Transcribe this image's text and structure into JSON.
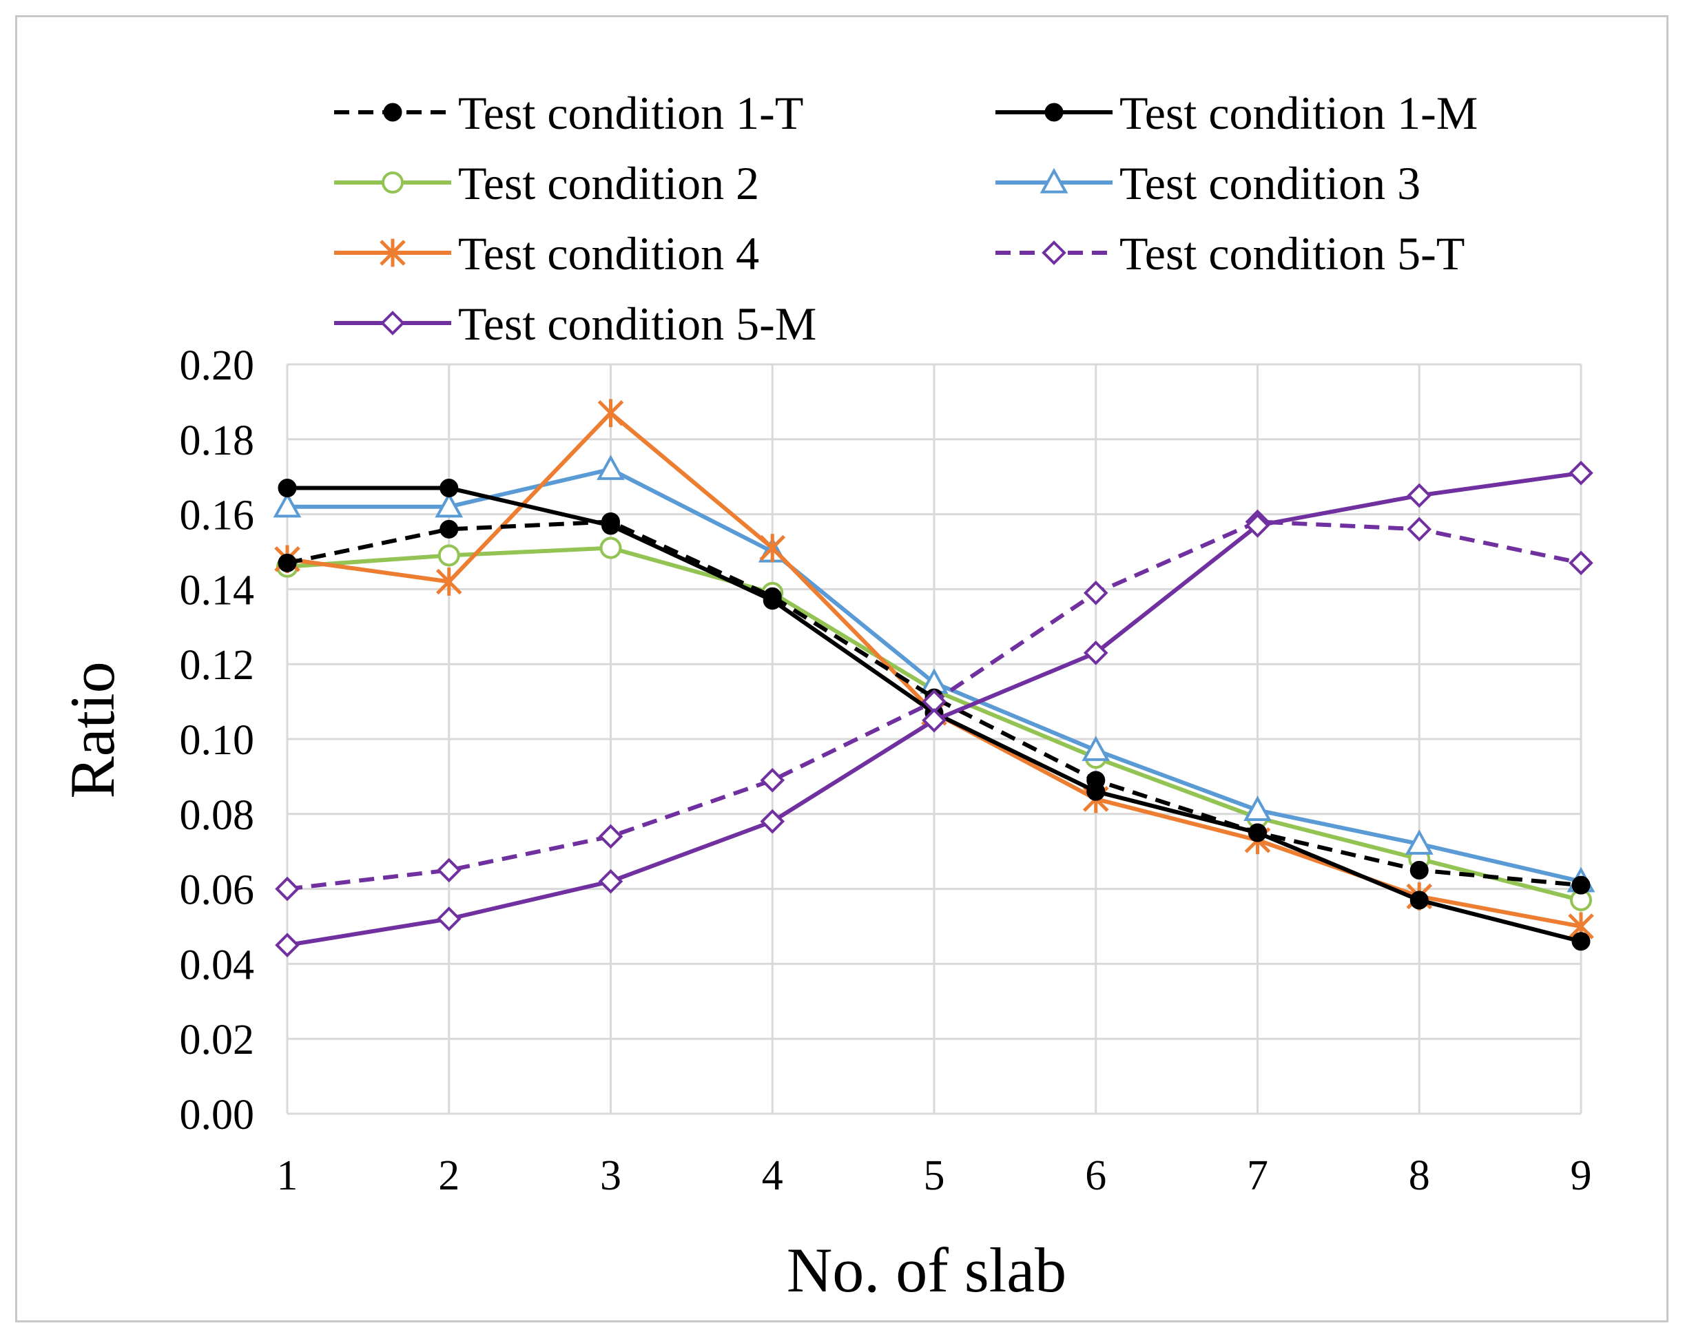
{
  "chart_data": {
    "type": "line",
    "title": "",
    "xlabel": "No. of slab",
    "ylabel": "Ratio",
    "ylim": [
      0,
      0.2
    ],
    "yticks": [
      "0.00",
      "0.02",
      "0.04",
      "0.06",
      "0.08",
      "0.10",
      "0.12",
      "0.14",
      "0.16",
      "0.18",
      "0.20"
    ],
    "categories": [
      "1",
      "2",
      "3",
      "4",
      "5",
      "6",
      "7",
      "8",
      "9"
    ],
    "grid": "vertical and horizontal",
    "legend_position": "top",
    "series": [
      {
        "name": "Test condition 1-T",
        "color": "#000000",
        "dash": "dashed",
        "marker": "filled-circle",
        "values": [
          0.147,
          0.156,
          0.158,
          0.138,
          0.111,
          0.089,
          0.075,
          0.065,
          0.061
        ]
      },
      {
        "name": "Test condition 1-M",
        "color": "#000000",
        "dash": "solid",
        "marker": "filled-circle",
        "values": [
          0.167,
          0.167,
          0.157,
          0.137,
          0.107,
          0.086,
          0.075,
          0.057,
          0.046
        ]
      },
      {
        "name": "Test condition 2",
        "color": "#92c353",
        "dash": "solid",
        "marker": "open-circle",
        "values": [
          0.146,
          0.149,
          0.151,
          0.139,
          0.113,
          0.095,
          0.079,
          0.068,
          0.057
        ]
      },
      {
        "name": "Test condition 3",
        "color": "#5b9bd5",
        "dash": "solid",
        "marker": "open-triangle",
        "values": [
          0.162,
          0.162,
          0.172,
          0.15,
          0.115,
          0.097,
          0.081,
          0.072,
          0.062
        ]
      },
      {
        "name": "Test condition 4",
        "color": "#ed7d31",
        "dash": "solid",
        "marker": "asterisk",
        "values": [
          0.148,
          0.142,
          0.187,
          0.151,
          0.107,
          0.084,
          0.073,
          0.058,
          0.05
        ]
      },
      {
        "name": "Test condition 5-T",
        "color": "#7030a0",
        "dash": "dashed",
        "marker": "open-diamond",
        "values": [
          0.06,
          0.065,
          0.074,
          0.089,
          0.11,
          0.139,
          0.158,
          0.156,
          0.147
        ]
      },
      {
        "name": "Test condition 5-M",
        "color": "#7030a0",
        "dash": "solid",
        "marker": "open-diamond",
        "values": [
          0.045,
          0.052,
          0.062,
          0.078,
          0.105,
          0.123,
          0.157,
          0.165,
          0.171
        ]
      }
    ]
  }
}
